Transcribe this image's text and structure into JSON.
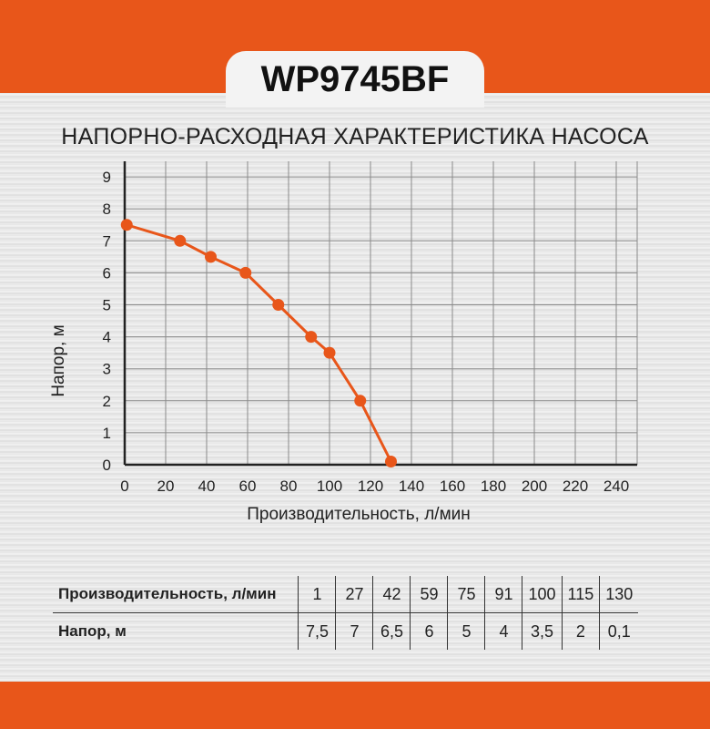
{
  "model": "WP9745BF",
  "colors": {
    "accent": "#e8561a",
    "grid": "#8a8a8a",
    "axis": "#222222"
  },
  "chart_data": {
    "type": "line",
    "title": "НАПОРНО-РАСХОДНАЯ ХАРАКТЕРИСТИКА НАСОСА",
    "xlabel": "Производительность, л/мин",
    "ylabel": "Напор, м",
    "xlim": [
      0,
      240
    ],
    "ylim": [
      0,
      9
    ],
    "xticks": [
      "0",
      "20",
      "40",
      "60",
      "80",
      "100",
      "120",
      "140",
      "160",
      "180",
      "200",
      "220",
      "240"
    ],
    "yticks": [
      "0",
      "1",
      "2",
      "3",
      "4",
      "5",
      "6",
      "7",
      "8",
      "9"
    ],
    "grid": true,
    "x": [
      1,
      27,
      42,
      59,
      75,
      91,
      100,
      115,
      130
    ],
    "y": [
      7.5,
      7,
      6.5,
      6,
      5,
      4,
      3.5,
      2,
      0.1
    ]
  },
  "table": {
    "row1_label": "Производительность, л/мин",
    "row2_label": "Напор, м",
    "row1": [
      "1",
      "27",
      "42",
      "59",
      "75",
      "91",
      "100",
      "115",
      "130"
    ],
    "row2": [
      "7,5",
      "7",
      "6,5",
      "6",
      "5",
      "4",
      "3,5",
      "2",
      "0,1"
    ]
  }
}
